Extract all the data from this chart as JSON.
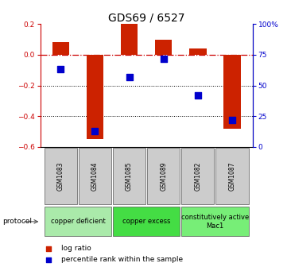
{
  "title": "GDS69 / 6527",
  "samples": [
    "GSM1083",
    "GSM1084",
    "GSM1085",
    "GSM1089",
    "GSM1082",
    "GSM1087"
  ],
  "log_ratio": [
    0.08,
    -0.55,
    0.2,
    0.1,
    0.04,
    -0.48
  ],
  "percentile_rank": [
    63,
    13,
    57,
    72,
    42,
    22
  ],
  "ylim_left": [
    -0.6,
    0.2
  ],
  "ylim_right": [
    0,
    100
  ],
  "yticks_left": [
    -0.6,
    -0.4,
    -0.2,
    0.0,
    0.2
  ],
  "yticks_right": [
    0,
    25,
    50,
    75,
    100
  ],
  "bar_color": "#cc2200",
  "dot_color": "#0000cc",
  "protocols": [
    {
      "label": "copper deficient",
      "samples": [
        0,
        1
      ],
      "color": "#aaeaaa"
    },
    {
      "label": "copper excess",
      "samples": [
        2,
        3
      ],
      "color": "#44dd44"
    },
    {
      "label": "constitutively active\nMac1",
      "samples": [
        4,
        5
      ],
      "color": "#77ee77"
    }
  ],
  "legend_bar_label": "log ratio",
  "legend_dot_label": "percentile rank within the sample",
  "protocol_label": "protocol",
  "hline_color": "#cc0000",
  "hline_style": "-.",
  "dotline_color": "#000000",
  "dotline_style": ":",
  "bar_width": 0.5,
  "dot_size": 28,
  "title_fontsize": 10,
  "tick_fontsize": 6.5,
  "sample_label_fontsize": 5.5,
  "proto_label_fontsize": 6.0
}
